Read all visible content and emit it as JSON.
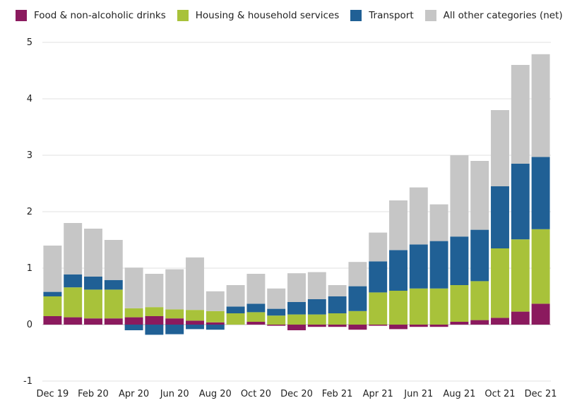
{
  "chart_data": {
    "type": "bar",
    "stacked": true,
    "categories": [
      "Dec 19",
      "Jan 20",
      "Feb 20",
      "Mar 20",
      "Apr 20",
      "May 20",
      "Jun 20",
      "Jul 20",
      "Aug 20",
      "Sep 20",
      "Oct 20",
      "Nov 20",
      "Dec 20",
      "Jan 21",
      "Feb 21",
      "Mar 21",
      "Apr 21",
      "May 21",
      "Jun 21",
      "Jul 21",
      "Aug 21",
      "Sep 21",
      "Oct 21",
      "Nov 21",
      "Dec 21"
    ],
    "x_tick_labels": [
      "Dec 19",
      "Feb 20",
      "Apr 20",
      "Jun 20",
      "Aug 20",
      "Oct 20",
      "Dec 20",
      "Feb 21",
      "Apr 21",
      "Jun 21",
      "Aug 21",
      "Oct 21",
      "Dec 21"
    ],
    "series": [
      {
        "name": "Food & non-alcoholic drinks",
        "color": "#8b1a5e",
        "values": [
          0.15,
          0.13,
          0.11,
          0.11,
          0.13,
          0.15,
          0.11,
          0.07,
          0.04,
          0.0,
          0.05,
          -0.02,
          -0.1,
          -0.04,
          -0.04,
          -0.09,
          -0.02,
          -0.08,
          -0.04,
          -0.04,
          0.05,
          0.08,
          0.12,
          0.23,
          0.37
        ]
      },
      {
        "name": "Housing & household services",
        "color": "#a8c23a",
        "values": [
          0.35,
          0.53,
          0.51,
          0.51,
          0.16,
          0.16,
          0.16,
          0.19,
          0.2,
          0.2,
          0.17,
          0.16,
          0.18,
          0.18,
          0.2,
          0.24,
          0.57,
          0.6,
          0.64,
          0.64,
          0.65,
          0.69,
          1.23,
          1.28,
          1.32
        ]
      },
      {
        "name": "Transport",
        "color": "#206095",
        "values": [
          0.08,
          0.23,
          0.23,
          0.17,
          -0.1,
          -0.18,
          -0.17,
          -0.08,
          -0.09,
          0.12,
          0.15,
          0.12,
          0.22,
          0.27,
          0.3,
          0.44,
          0.55,
          0.72,
          0.78,
          0.84,
          0.86,
          0.91,
          1.1,
          1.34,
          1.28
        ]
      },
      {
        "name": "All other categories (net)",
        "color": "#c6c6c6",
        "values": [
          0.82,
          0.91,
          0.85,
          0.71,
          0.72,
          0.59,
          0.71,
          0.93,
          0.35,
          0.38,
          0.53,
          0.36,
          0.51,
          0.48,
          0.2,
          0.43,
          0.51,
          0.88,
          1.01,
          0.65,
          1.44,
          1.22,
          1.35,
          1.75,
          1.82
        ]
      }
    ],
    "ylim": [
      -1,
      5
    ],
    "yticks": [
      -1,
      0,
      1,
      2,
      3,
      4,
      5
    ],
    "legend": "top",
    "grid": true
  }
}
